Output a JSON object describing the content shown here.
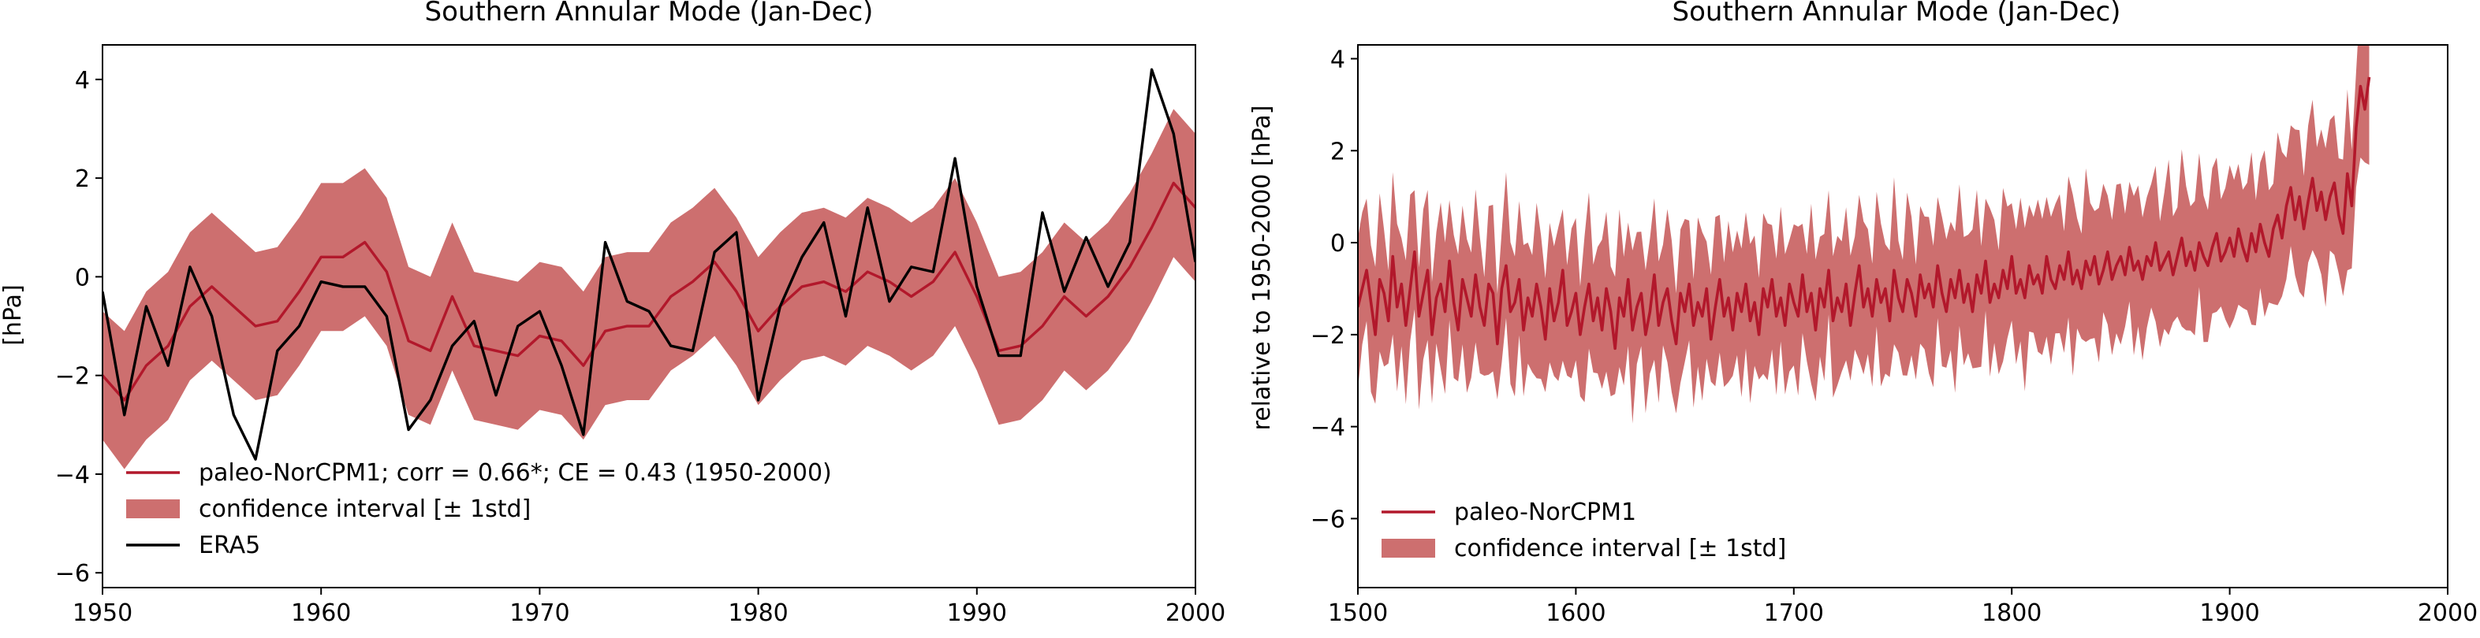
{
  "colors": {
    "model": "#b2182b",
    "band": "#cd6f6f",
    "obs": "#000000"
  },
  "chart_data": [
    {
      "type": "line",
      "title": "Southern Annular Mode (Jan-Dec)",
      "xlabel": "",
      "ylabel": "[hPa]",
      "xlim": [
        1950,
        2000
      ],
      "ylim": [
        -6.3,
        4.7
      ],
      "xticks": [
        1950,
        1960,
        1970,
        1980,
        1990,
        2000
      ],
      "yticks": [
        -6,
        -4,
        -2,
        0,
        2,
        4
      ],
      "grid": false,
      "legend_position": "lower-left",
      "x": [
        1950,
        1951,
        1952,
        1953,
        1954,
        1955,
        1956,
        1957,
        1958,
        1959,
        1960,
        1961,
        1962,
        1963,
        1964,
        1965,
        1966,
        1967,
        1968,
        1969,
        1970,
        1971,
        1972,
        1973,
        1974,
        1975,
        1976,
        1977,
        1978,
        1979,
        1980,
        1981,
        1982,
        1983,
        1984,
        1985,
        1986,
        1987,
        1988,
        1989,
        1990,
        1991,
        1992,
        1993,
        1994,
        1995,
        1996,
        1997,
        1998,
        1999,
        2000
      ],
      "series": [
        {
          "name": "paleo-NorCPM1; corr = 0.66*; CE = 0.43 (1950-2000)",
          "kind": "line",
          "values": [
            -2.0,
            -2.5,
            -1.8,
            -1.4,
            -0.6,
            -0.2,
            -0.6,
            -1.0,
            -0.9,
            -0.3,
            0.4,
            0.4,
            0.7,
            0.1,
            -1.3,
            -1.5,
            -0.4,
            -1.4,
            -1.5,
            -1.6,
            -1.2,
            -1.3,
            -1.8,
            -1.1,
            -1.0,
            -1.0,
            -0.4,
            -0.1,
            0.3,
            -0.3,
            -1.1,
            -0.6,
            -0.2,
            -0.1,
            -0.3,
            0.1,
            -0.1,
            -0.4,
            -0.1,
            0.5,
            -0.4,
            -1.5,
            -1.4,
            -1.0,
            -0.4,
            -0.8,
            -0.4,
            0.2,
            1.0,
            1.9,
            1.4
          ]
        },
        {
          "name": "confidence interval [± 1std]",
          "kind": "band",
          "lower": [
            -3.3,
            -3.9,
            -3.3,
            -2.9,
            -2.1,
            -1.7,
            -2.1,
            -2.5,
            -2.4,
            -1.8,
            -1.1,
            -1.1,
            -0.8,
            -1.4,
            -2.8,
            -3.0,
            -1.9,
            -2.9,
            -3.0,
            -3.1,
            -2.7,
            -2.8,
            -3.3,
            -2.6,
            -2.5,
            -2.5,
            -1.9,
            -1.6,
            -1.2,
            -1.8,
            -2.6,
            -2.1,
            -1.7,
            -1.6,
            -1.8,
            -1.4,
            -1.6,
            -1.9,
            -1.6,
            -1.0,
            -1.9,
            -3.0,
            -2.9,
            -2.5,
            -1.9,
            -2.3,
            -1.9,
            -1.3,
            -0.5,
            0.4,
            -0.1
          ],
          "upper": [
            -0.7,
            -1.1,
            -0.3,
            0.1,
            0.9,
            1.3,
            0.9,
            0.5,
            0.6,
            1.2,
            1.9,
            1.9,
            2.2,
            1.6,
            0.2,
            0.0,
            1.1,
            0.1,
            0.0,
            -0.1,
            0.3,
            0.2,
            -0.3,
            0.4,
            0.5,
            0.5,
            1.1,
            1.4,
            1.8,
            1.2,
            0.4,
            0.9,
            1.3,
            1.4,
            1.2,
            1.6,
            1.4,
            1.1,
            1.4,
            2.0,
            1.1,
            0.0,
            0.1,
            0.5,
            1.1,
            0.7,
            1.1,
            1.7,
            2.5,
            3.4,
            2.9
          ]
        },
        {
          "name": "ERA5",
          "kind": "line",
          "values": [
            -0.3,
            -2.8,
            -0.6,
            -1.8,
            0.2,
            -0.8,
            -2.8,
            -3.7,
            -1.5,
            -1.0,
            -0.1,
            -0.2,
            -0.2,
            -0.8,
            -3.1,
            -2.5,
            -1.4,
            -0.9,
            -2.4,
            -1.0,
            -0.7,
            -1.8,
            -3.2,
            0.7,
            -0.5,
            -0.7,
            -1.4,
            -1.5,
            0.5,
            0.9,
            -2.5,
            -0.6,
            0.4,
            1.1,
            -0.8,
            1.4,
            -0.5,
            0.2,
            0.1,
            2.4,
            -0.2,
            -1.6,
            -1.6,
            1.3,
            -0.3,
            0.8,
            -0.2,
            0.7,
            4.2,
            2.9,
            0.3
          ]
        }
      ]
    },
    {
      "type": "line",
      "title": "Southern Annular Mode (Jan-Dec)",
      "xlabel": "",
      "ylabel": "relative to 1950-2000 [hPa]",
      "xlim": [
        1500,
        2000
      ],
      "ylim": [
        -7.5,
        4.3
      ],
      "xticks": [
        1500,
        1600,
        1700,
        1800,
        1900,
        2000
      ],
      "yticks": [
        -6,
        -4,
        -2,
        0,
        2,
        4
      ],
      "grid": false,
      "legend_position": "lower-left",
      "x_step": 2,
      "series": [
        {
          "name": "paleo-NorCPM1",
          "kind": "line",
          "x_start": 1500,
          "values": [
            -1.4,
            -1.0,
            -0.6,
            -1.3,
            -2.0,
            -0.8,
            -1.1,
            -1.7,
            -0.3,
            -1.4,
            -0.9,
            -1.8,
            -1.0,
            -0.2,
            -1.6,
            -1.1,
            -0.6,
            -2.0,
            -1.2,
            -0.9,
            -1.5,
            -0.4,
            -1.3,
            -1.9,
            -0.8,
            -1.2,
            -1.6,
            -0.7,
            -1.4,
            -1.8,
            -0.9,
            -1.1,
            -2.2,
            -1.0,
            -0.5,
            -1.5,
            -1.3,
            -0.8,
            -1.9,
            -1.2,
            -1.6,
            -0.9,
            -1.4,
            -2.1,
            -1.0,
            -1.7,
            -1.3,
            -0.6,
            -1.8,
            -1.5,
            -1.1,
            -2.0,
            -1.4,
            -0.9,
            -1.7,
            -1.2,
            -1.9,
            -1.0,
            -1.5,
            -2.3,
            -1.2,
            -1.6,
            -0.8,
            -1.9,
            -1.4,
            -1.1,
            -2.0,
            -1.5,
            -0.7,
            -1.8,
            -1.3,
            -1.0,
            -1.7,
            -2.2,
            -1.1,
            -1.5,
            -0.9,
            -1.8,
            -1.3,
            -1.6,
            -1.0,
            -2.1,
            -1.4,
            -0.8,
            -1.6,
            -1.2,
            -1.9,
            -1.1,
            -1.5,
            -0.9,
            -1.7,
            -1.3,
            -2.0,
            -1.0,
            -1.4,
            -0.8,
            -1.6,
            -1.2,
            -1.8,
            -0.9,
            -1.3,
            -1.6,
            -0.7,
            -1.5,
            -1.1,
            -1.9,
            -1.0,
            -1.4,
            -0.6,
            -1.7,
            -1.2,
            -1.5,
            -0.9,
            -1.8,
            -1.1,
            -0.5,
            -1.4,
            -1.0,
            -1.6,
            -0.8,
            -1.3,
            -1.0,
            -1.7,
            -0.6,
            -1.2,
            -1.5,
            -0.8,
            -1.1,
            -1.6,
            -0.7,
            -1.2,
            -0.9,
            -1.4,
            -0.5,
            -1.1,
            -1.5,
            -0.8,
            -1.2,
            -0.6,
            -1.3,
            -0.9,
            -1.5,
            -0.7,
            -1.1,
            -0.4,
            -1.3,
            -0.9,
            -1.2,
            -0.6,
            -1.0,
            -0.3,
            -1.1,
            -0.8,
            -1.2,
            -0.5,
            -0.9,
            -0.7,
            -1.1,
            -0.3,
            -0.8,
            -1.0,
            -0.5,
            -0.8,
            -0.2,
            -0.9,
            -0.6,
            -1.0,
            -0.4,
            -0.7,
            -0.3,
            -0.9,
            -0.6,
            -0.2,
            -0.8,
            -0.5,
            -0.3,
            -0.7,
            -0.1,
            -0.6,
            -0.4,
            -0.8,
            -0.3,
            -0.5,
            0.0,
            -0.6,
            -0.4,
            -0.2,
            -0.7,
            -0.3,
            0.1,
            -0.5,
            -0.2,
            -0.6,
            0.0,
            -0.3,
            -0.5,
            -0.1,
            0.2,
            -0.4,
            -0.2,
            0.1,
            -0.3,
            0.3,
            -0.1,
            -0.4,
            0.2,
            -0.2,
            0.4,
            0.0,
            -0.3,
            0.3,
            0.6,
            0.1,
            0.8,
            1.2,
            0.5,
            1.0,
            0.3,
            0.9,
            1.4,
            0.7,
            1.1,
            0.5,
            1.0,
            1.3,
            0.6,
            0.2,
            1.5,
            0.8,
            2.5,
            3.4,
            2.9,
            3.6
          ]
        },
        {
          "name": "confidence interval [± 1std]",
          "kind": "band",
          "std": 1.5
        }
      ]
    }
  ]
}
